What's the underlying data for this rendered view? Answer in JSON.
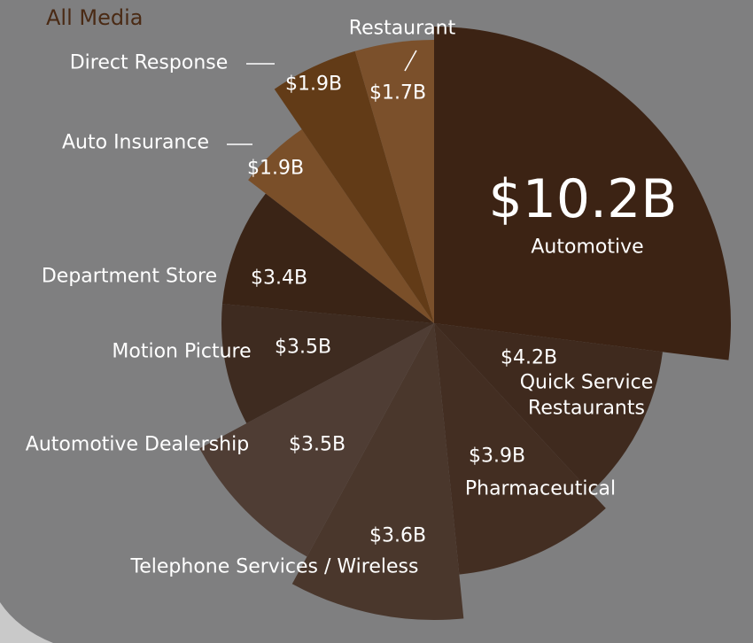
{
  "chart_data": {
    "type": "pie",
    "title": "All Media",
    "categories": [
      "Automotive",
      "Quick Service Restaurants",
      "Pharmaceutical",
      "Telephone Services / Wireless",
      "Automotive Dealership",
      "Motion Picture",
      "Department Store",
      "Auto Insurance",
      "Direct Response",
      "Restaurant"
    ],
    "values": [
      10.2,
      4.2,
      3.9,
      3.6,
      3.5,
      3.5,
      3.4,
      1.9,
      1.9,
      1.7
    ],
    "value_labels": [
      "$10.2B",
      "$4.2B",
      "$3.9B",
      "$3.6B",
      "$3.5B",
      "$3.5B",
      "$3.4B",
      "$1.9B",
      "$1.9B",
      "$1.7B"
    ],
    "colors": [
      "#3c2314",
      "#3f2a1e",
      "#432e22",
      "#4a372c",
      "#4f3d34",
      "#3e2b20",
      "#3a2416",
      "#7a4f29",
      "#623b17",
      "#7b502b"
    ]
  }
}
